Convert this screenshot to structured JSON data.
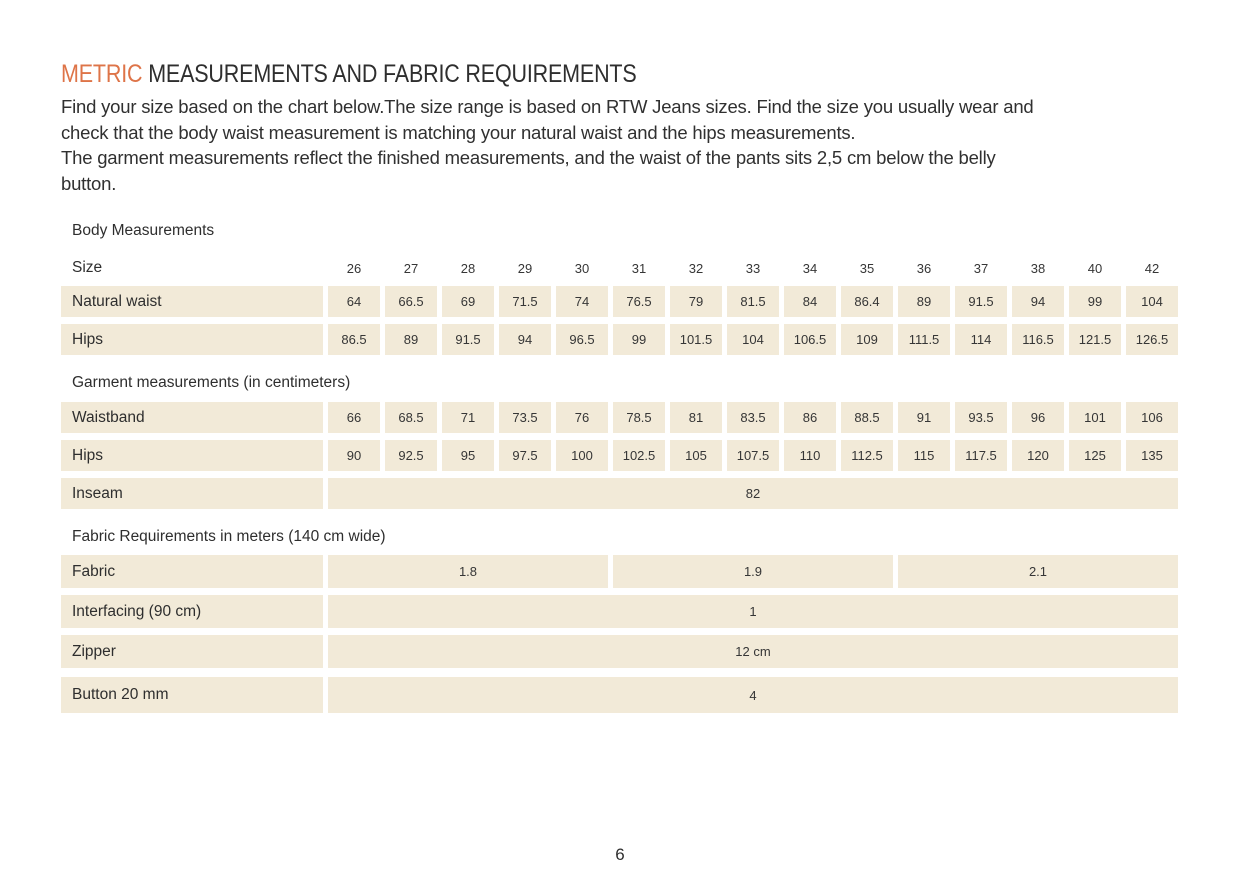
{
  "header": {
    "title_highlight": "METRIC",
    "title_rest": " MEASUREMENTS AND FABRIC REQUIREMENTS",
    "intro": "Find your size based on the chart below.The size range is based on RTW Jeans sizes. Find the size you usually wear and\ncheck that the body waist measurement is matching your natural waist and the hips measurements.\nThe garment measurements reflect the finished measurements, and the waist of the pants sits 2,5 cm below the belly\nbutton."
  },
  "colors": {
    "accent": "#de7448",
    "cell_background": "#f2ead8",
    "text": "#2e2e2e"
  },
  "tables": {
    "body": {
      "title": "Body Measurements",
      "size_label": "Size",
      "sizes": [
        "26",
        "27",
        "28",
        "29",
        "30",
        "31",
        "32",
        "33",
        "34",
        "35",
        "36",
        "37",
        "38",
        "40",
        "42"
      ],
      "rows": [
        {
          "label": "Natural waist",
          "values": [
            "64",
            "66.5",
            "69",
            "71.5",
            "74",
            "76.5",
            "79",
            "81.5",
            "84",
            "86.4",
            "89",
            "91.5",
            "94",
            "99",
            "104"
          ]
        },
        {
          "label": "Hips",
          "values": [
            "86.5",
            "89",
            "91.5",
            "94",
            "96.5",
            "99",
            "101.5",
            "104",
            "106.5",
            "109",
            "111.5",
            "114",
            "116.5",
            "121.5",
            "126.5"
          ]
        }
      ]
    },
    "garment": {
      "title": "Garment measurements (in centimeters)",
      "rows": [
        {
          "label": "Waistband",
          "values": [
            "66",
            "68.5",
            "71",
            "73.5",
            "76",
            "78.5",
            "81",
            "83.5",
            "86",
            "88.5",
            "91",
            "93.5",
            "96",
            "101",
            "106"
          ]
        },
        {
          "label": "Hips",
          "values": [
            "90",
            "92.5",
            "95",
            "97.5",
            "100",
            "102.5",
            "105",
            "107.5",
            "110",
            "112.5",
            "115",
            "117.5",
            "120",
            "125",
            "135"
          ]
        },
        {
          "label": "Inseam",
          "span_value": "82"
        }
      ]
    },
    "fabric": {
      "title": "Fabric Requirements in meters (140 cm wide)",
      "rows": [
        {
          "label": "Fabric",
          "groups": [
            "1.8",
            "1.9",
            "2.1"
          ]
        },
        {
          "label": "Interfacing (90 cm)",
          "span_value": "1"
        },
        {
          "label": "Zipper",
          "span_value": "12 cm"
        },
        {
          "label": "Button 20 mm",
          "span_value": "4"
        }
      ]
    }
  },
  "footer": {
    "page_number": "6"
  }
}
